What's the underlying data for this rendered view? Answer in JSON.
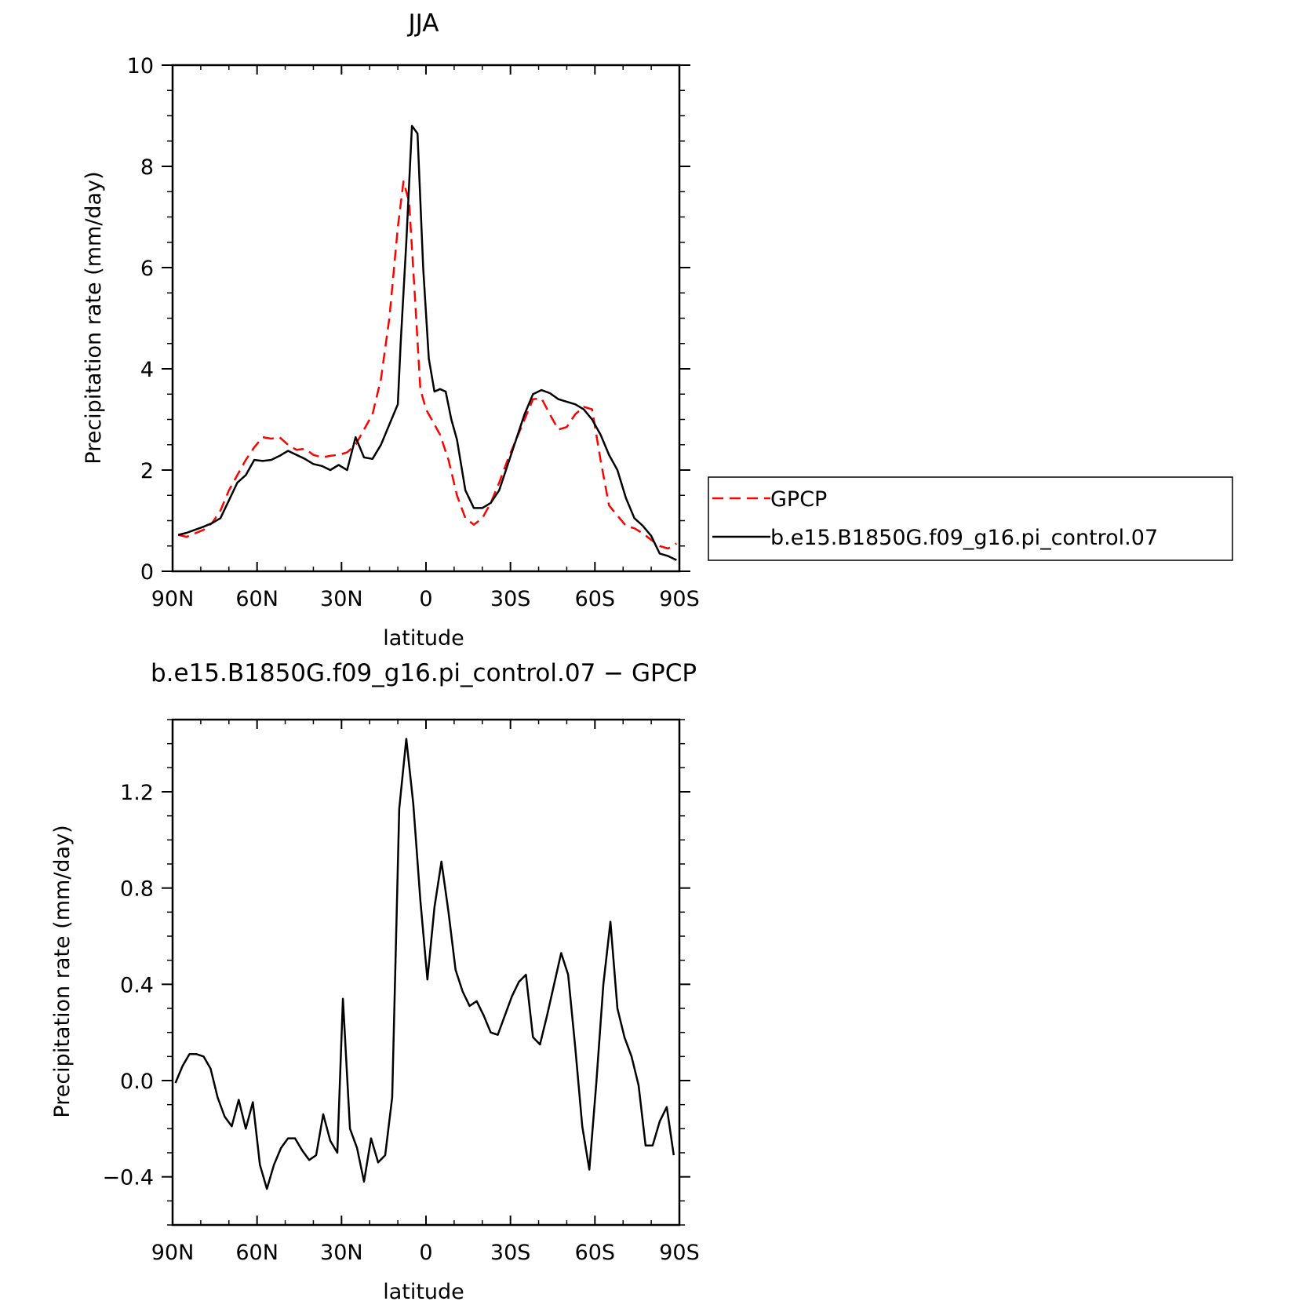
{
  "chart_data": [
    {
      "type": "line",
      "title": "JJA",
      "xlabel": "latitude",
      "ylabel": "Precipitation rate (mm/day)",
      "xlim": [
        -90,
        90
      ],
      "ylim": [
        0,
        10
      ],
      "x_ticks": [
        -90,
        -60,
        -30,
        0,
        30,
        60,
        90
      ],
      "x_tick_labels": [
        "90N",
        "60N",
        "30N",
        "0",
        "30S",
        "60S",
        "90S"
      ],
      "y_ticks": [
        0,
        2,
        4,
        6,
        8,
        10
      ],
      "y_tick_labels": [
        "0",
        "2",
        "4",
        "6",
        "8",
        "10"
      ],
      "legend_position": "right",
      "series": [
        {
          "name": "GPCP",
          "color": "#ff0000",
          "dash": "dashed",
          "x": [
            -88,
            -85,
            -82,
            -79,
            -76,
            -73,
            -70,
            -67,
            -64,
            -61,
            -58,
            -55,
            -52,
            -49,
            -46,
            -43,
            -40,
            -37,
            -34,
            -31,
            -28,
            -25,
            -22,
            -19,
            -16,
            -13,
            -10,
            -8,
            -6,
            -4,
            -2,
            0,
            2,
            5,
            8,
            11,
            14,
            17,
            20,
            23,
            26,
            29,
            32,
            35,
            38,
            41,
            44,
            47,
            50,
            53,
            56,
            59,
            62,
            65,
            68,
            71,
            74,
            77,
            80,
            83,
            86,
            89
          ],
          "y": [
            0.72,
            0.68,
            0.75,
            0.82,
            0.95,
            1.2,
            1.6,
            1.9,
            2.2,
            2.45,
            2.65,
            2.62,
            2.65,
            2.5,
            2.4,
            2.42,
            2.3,
            2.25,
            2.28,
            2.3,
            2.35,
            2.5,
            2.8,
            3.1,
            3.8,
            5.0,
            6.8,
            7.7,
            7.3,
            5.5,
            3.6,
            3.2,
            3.0,
            2.7,
            2.2,
            1.5,
            1.05,
            0.92,
            1.05,
            1.35,
            1.75,
            2.2,
            2.6,
            3.0,
            3.4,
            3.42,
            3.1,
            2.8,
            2.85,
            3.1,
            3.25,
            3.2,
            2.2,
            1.3,
            1.1,
            0.9,
            0.85,
            0.75,
            0.62,
            0.5,
            0.45,
            0.55
          ]
        },
        {
          "name": "b.e15.B1850G.f09_g16.pi_control.07",
          "color": "#000000",
          "dash": "solid",
          "x": [
            -88,
            -85,
            -82,
            -79,
            -76,
            -73,
            -70,
            -67,
            -64,
            -61,
            -58,
            -55,
            -52,
            -49,
            -46,
            -43,
            -40,
            -37,
            -34,
            -31,
            -29.5,
            -28,
            -25,
            -22,
            -19,
            -16,
            -13,
            -10,
            -9,
            -7,
            -5,
            -3,
            -1,
            1,
            3,
            5,
            7,
            9,
            11,
            14,
            17,
            20,
            23,
            26,
            29,
            32,
            35,
            38,
            41,
            44,
            47,
            50,
            53,
            56,
            59,
            62,
            65,
            68,
            71,
            74,
            77,
            80,
            83,
            86,
            89
          ],
          "y": [
            0.72,
            0.76,
            0.82,
            0.88,
            0.95,
            1.05,
            1.4,
            1.75,
            1.9,
            2.2,
            2.18,
            2.2,
            2.28,
            2.38,
            2.3,
            2.22,
            2.12,
            2.08,
            2.0,
            2.1,
            2.05,
            2.0,
            2.65,
            2.25,
            2.22,
            2.5,
            2.9,
            3.3,
            4.5,
            6.5,
            8.8,
            8.65,
            6.0,
            4.2,
            3.55,
            3.6,
            3.55,
            3.0,
            2.6,
            1.6,
            1.25,
            1.25,
            1.35,
            1.6,
            2.1,
            2.6,
            3.1,
            3.5,
            3.58,
            3.52,
            3.4,
            3.35,
            3.3,
            3.2,
            3.0,
            2.7,
            2.3,
            2.0,
            1.45,
            1.05,
            0.9,
            0.7,
            0.35,
            0.3,
            0.22
          ]
        }
      ]
    },
    {
      "type": "line",
      "title": "b.e15.B1850G.f09_g16.pi_control.07 − GPCP",
      "xlabel": "latitude",
      "ylabel": "Precipitation rate (mm/day)",
      "xlim": [
        -90,
        90
      ],
      "ylim": [
        -0.6,
        1.5
      ],
      "x_ticks": [
        -90,
        -60,
        -30,
        0,
        30,
        60,
        90
      ],
      "x_tick_labels": [
        "90N",
        "60N",
        "30N",
        "0",
        "30S",
        "60S",
        "90S"
      ],
      "y_ticks": [
        -0.4,
        0.0,
        0.4,
        0.8,
        1.2
      ],
      "y_tick_labels": [
        "−0.4",
        "0.0",
        "0.4",
        "0.8",
        "1.2"
      ],
      "series": [
        {
          "name": "",
          "color": "#000000",
          "dash": "solid",
          "x": [
            -89,
            -86.5,
            -84,
            -81.5,
            -79,
            -76.5,
            -74,
            -71.5,
            -69,
            -66.5,
            -64,
            -61.5,
            -59,
            -56.5,
            -54,
            -51.5,
            -49,
            -46.5,
            -44,
            -41.5,
            -39,
            -36.5,
            -34,
            -31.5,
            -29.5,
            -27,
            -24.5,
            -22,
            -19.5,
            -17,
            -14.5,
            -12,
            -9.5,
            -7,
            -4.5,
            -2,
            0.5,
            3,
            5.5,
            8,
            10.5,
            13,
            15.5,
            18,
            20.5,
            23,
            25.5,
            28,
            30.5,
            33,
            35.5,
            38,
            40.5,
            43,
            45.5,
            48,
            50.5,
            53,
            55.5,
            58,
            60.5,
            63,
            65.5,
            68,
            70.5,
            73,
            75.5,
            78,
            80.5,
            83,
            85.5,
            88
          ],
          "y": [
            -0.01,
            0.06,
            0.11,
            0.11,
            0.1,
            0.05,
            -0.07,
            -0.15,
            -0.19,
            -0.08,
            -0.2,
            -0.09,
            -0.35,
            -0.45,
            -0.35,
            -0.28,
            -0.24,
            -0.24,
            -0.29,
            -0.33,
            -0.31,
            -0.14,
            -0.25,
            -0.3,
            0.34,
            -0.2,
            -0.28,
            -0.42,
            -0.24,
            -0.34,
            -0.31,
            -0.07,
            1.13,
            1.42,
            1.15,
            0.75,
            0.42,
            0.72,
            0.91,
            0.7,
            0.46,
            0.37,
            0.31,
            0.33,
            0.27,
            0.2,
            0.19,
            0.27,
            0.35,
            0.41,
            0.44,
            0.18,
            0.15,
            0.27,
            0.4,
            0.53,
            0.44,
            0.14,
            -0.19,
            -0.37,
            -0.01,
            0.4,
            0.66,
            0.3,
            0.18,
            0.1,
            -0.02,
            -0.27,
            -0.27,
            -0.17,
            -0.11,
            -0.31
          ]
        }
      ]
    }
  ]
}
